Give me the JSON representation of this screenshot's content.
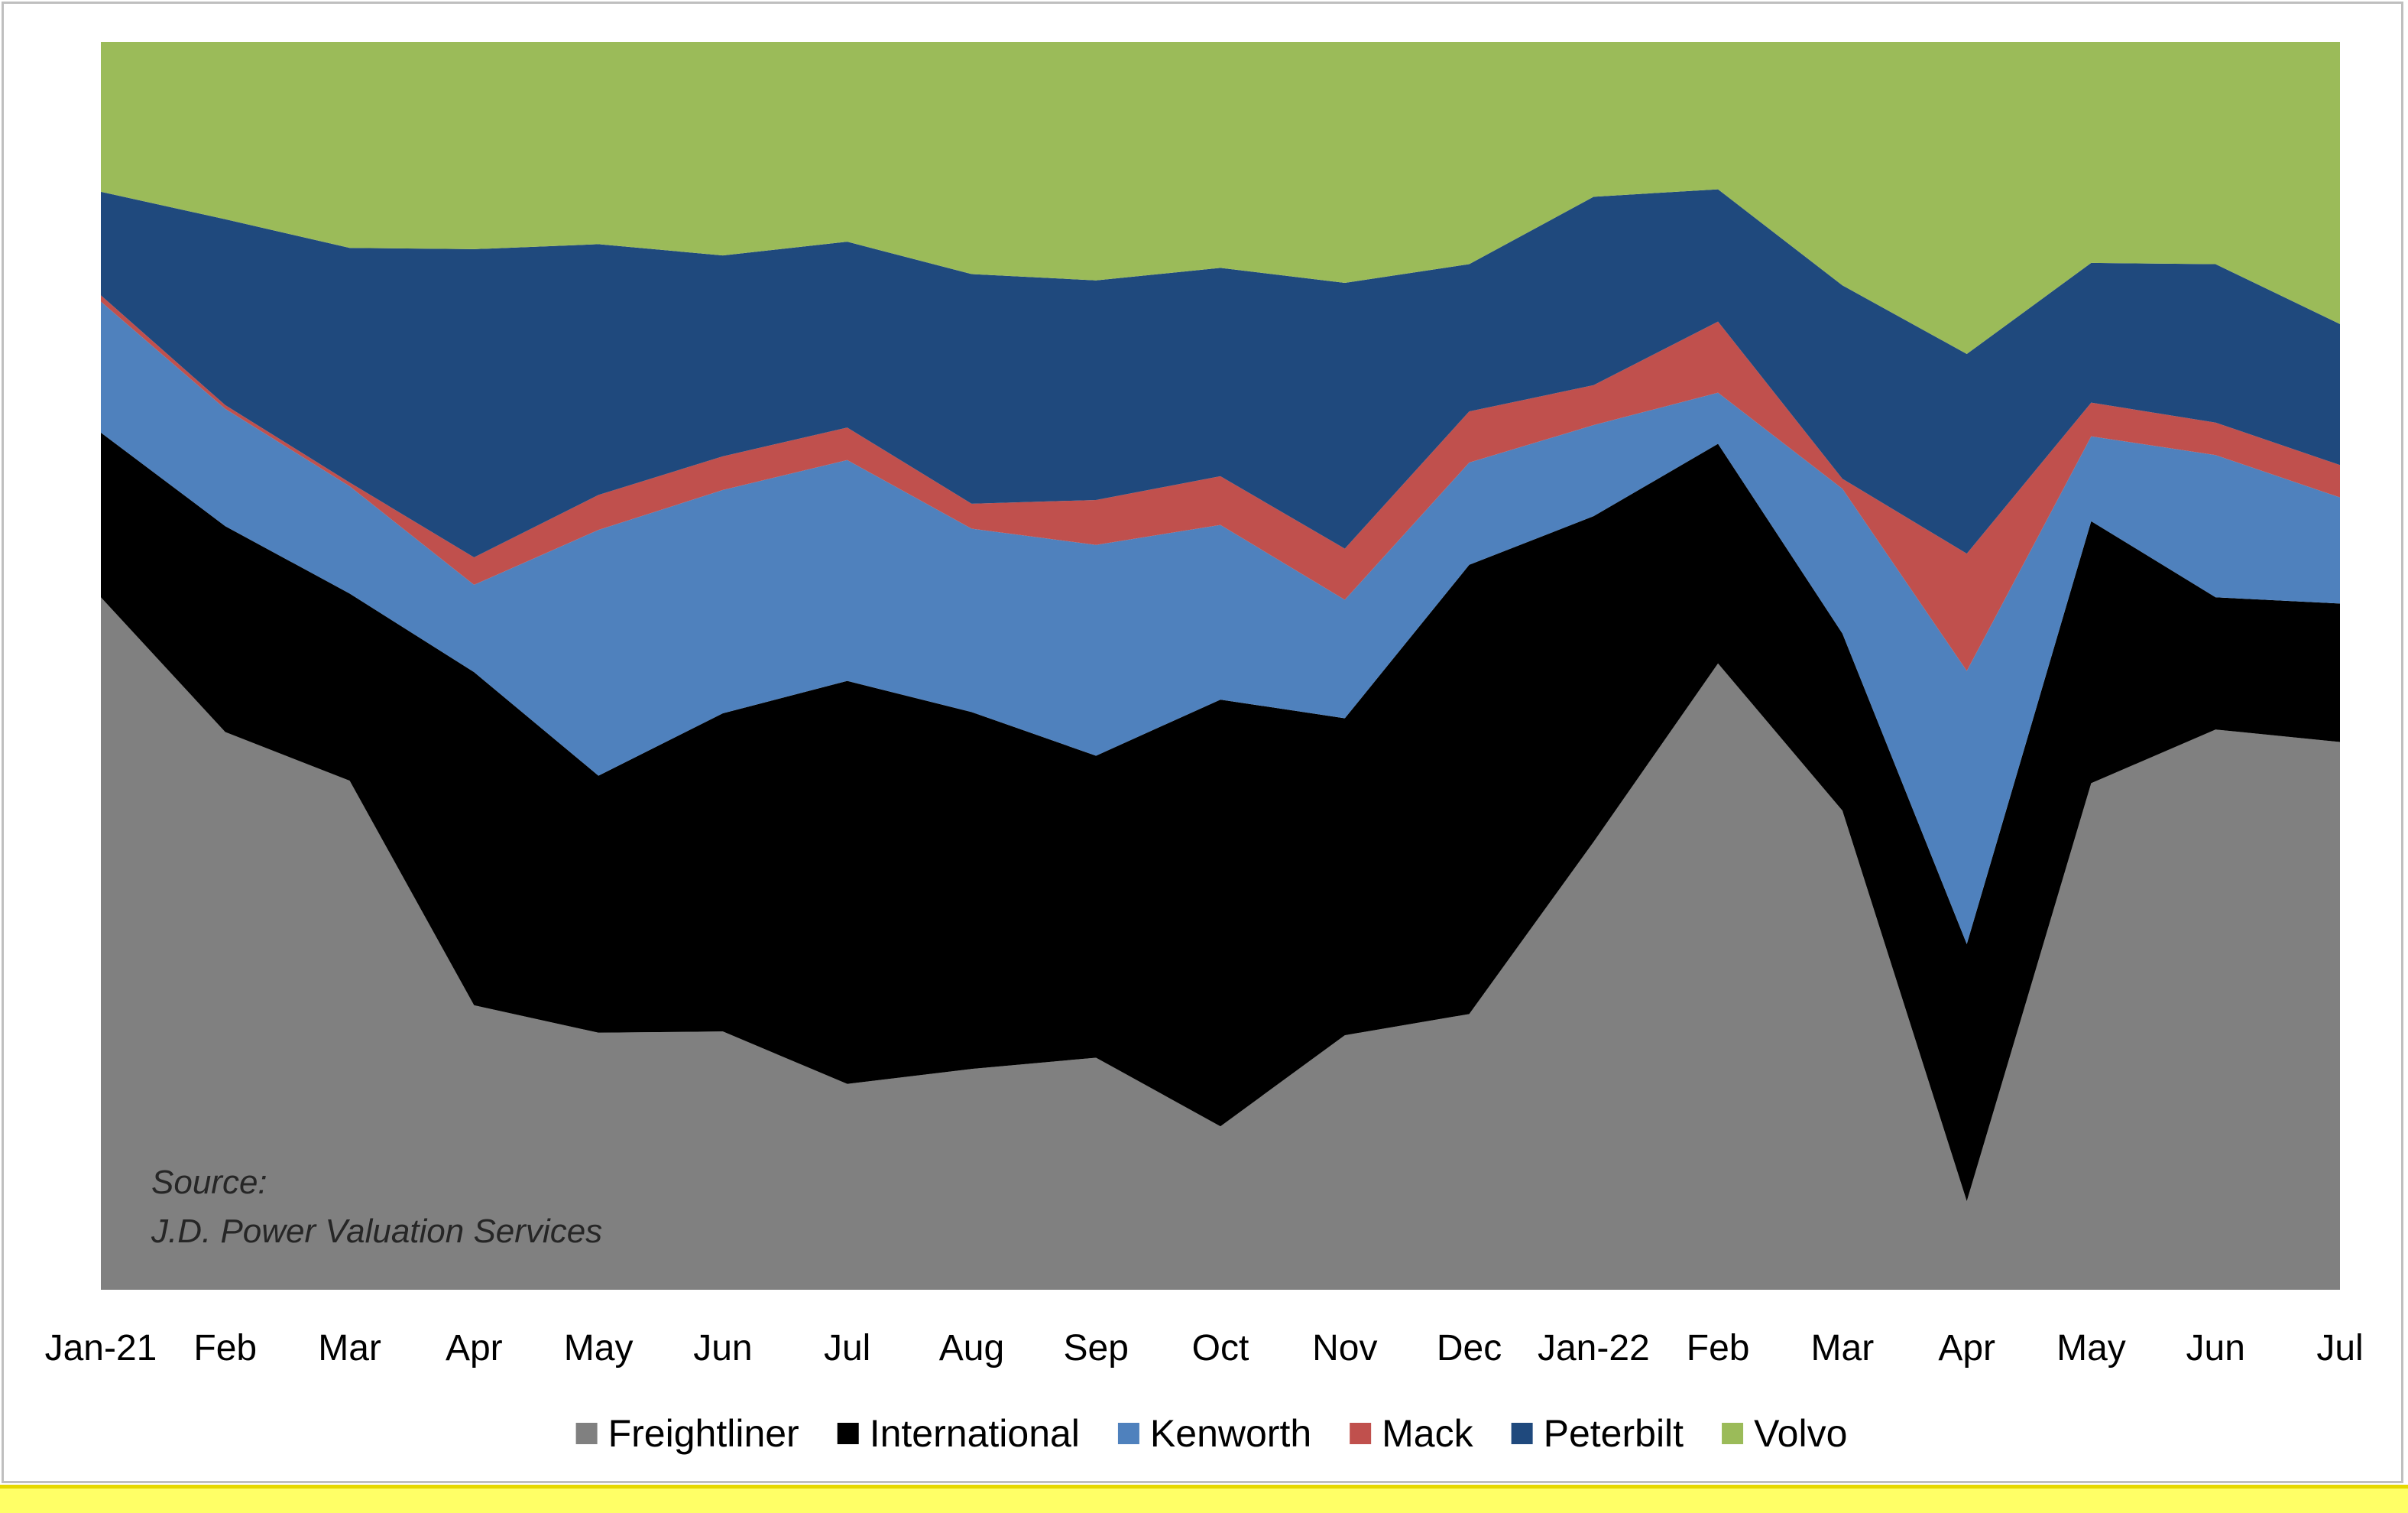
{
  "chart_data": {
    "type": "area",
    "stacked": true,
    "normalized_percent": true,
    "x": [
      "Jan-21",
      "Feb",
      "Mar",
      "Apr",
      "May",
      "Jun",
      "Jul",
      "Aug",
      "Sep",
      "Oct",
      "Nov",
      "Dec",
      "Jan-22",
      "Feb",
      "Mar",
      "Apr",
      "May",
      "Jun",
      "Jul"
    ],
    "ylim": [
      0,
      100
    ],
    "grid": false,
    "legend_position": "bottom",
    "source": [
      "Source:",
      "J.D. Power Valuation Services"
    ],
    "series": [
      {
        "name": "Freightliner",
        "color": "#808080",
        "values": [
          55.5,
          44.7,
          40.8,
          22.8,
          20.6,
          20.7,
          16.5,
          17.7,
          18.6,
          13.1,
          20.4,
          22.1,
          35.9,
          50.2,
          38.4,
          7.1,
          40.6,
          44.9,
          43.9
        ]
      },
      {
        "name": "International",
        "color": "#000000",
        "values": [
          13.2,
          16.5,
          15.0,
          26.7,
          20.6,
          25.5,
          32.3,
          28.6,
          24.2,
          34.2,
          25.4,
          36.0,
          26.1,
          17.6,
          14.2,
          20.6,
          21.0,
          10.6,
          11.1
        ]
      },
      {
        "name": "Kenworth",
        "color": "#4f81bd",
        "values": [
          10.5,
          9.4,
          8.6,
          7.0,
          19.7,
          17.9,
          17.7,
          14.7,
          16.9,
          14.0,
          9.5,
          8.2,
          7.3,
          4.1,
          11.6,
          21.9,
          6.8,
          11.4,
          8.5
        ]
      },
      {
        "name": "Mack",
        "color": "#c0504d",
        "values": [
          0.5,
          0.3,
          0.3,
          2.2,
          2.8,
          2.7,
          2.6,
          2.0,
          3.6,
          3.9,
          4.1,
          4.1,
          3.2,
          5.7,
          0.8,
          9.4,
          2.7,
          2.6,
          2.6
        ]
      },
      {
        "name": "Peterbilt",
        "color": "#1f497d",
        "values": [
          8.3,
          14.9,
          18.8,
          24.7,
          20.1,
          16.1,
          14.9,
          18.4,
          17.6,
          16.7,
          21.3,
          11.8,
          15.1,
          10.6,
          15.5,
          16.0,
          11.2,
          12.7,
          11.3
        ]
      },
      {
        "name": "Volvo",
        "color": "#9bbb59",
        "values": [
          12.0,
          14.2,
          16.5,
          16.6,
          16.2,
          17.1,
          16.0,
          18.6,
          19.1,
          18.1,
          19.3,
          17.8,
          12.4,
          11.8,
          19.5,
          25.0,
          17.7,
          17.8,
          22.6
        ]
      }
    ]
  }
}
